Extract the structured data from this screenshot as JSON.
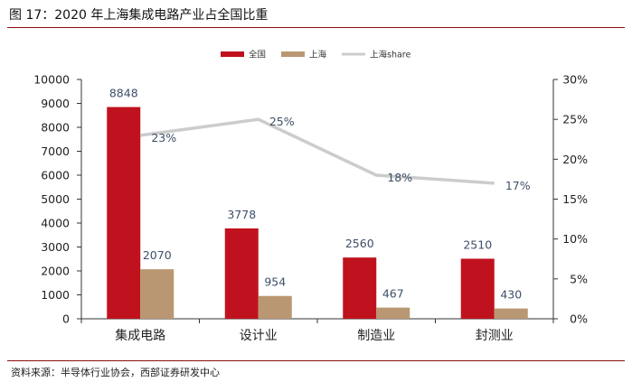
{
  "header": {
    "title": "图 17：2020 年上海集成电路产业占全国比重"
  },
  "footer": {
    "source": "资料来源：半导体行业协会，西部证券研发中心"
  },
  "colors": {
    "national": "#c0121e",
    "shanghai": "#b99772",
    "share": "#cccccc",
    "label": "#3d4f68",
    "rule": "#8b0e10"
  },
  "chart_data": {
    "type": "bar",
    "categories": [
      "集成电路",
      "设计业",
      "制造业",
      "封测业"
    ],
    "series": [
      {
        "name": "全国",
        "type": "bar",
        "axis": "left",
        "values": [
          8848,
          3778,
          2560,
          2510
        ],
        "labels": [
          "8848",
          "3778",
          "2560",
          "2510"
        ]
      },
      {
        "name": "上海",
        "type": "bar",
        "axis": "left",
        "values": [
          2070,
          954,
          467,
          430
        ],
        "labels": [
          "2070",
          "954",
          "467",
          "430"
        ]
      },
      {
        "name": "上海share",
        "type": "line",
        "axis": "right",
        "values": [
          23,
          25,
          18,
          17
        ],
        "labels": [
          "23%",
          "25%",
          "18%",
          "17%"
        ]
      }
    ],
    "y_left": {
      "min": 0,
      "max": 10000,
      "ticks": [
        "0",
        "1000",
        "2000",
        "3000",
        "4000",
        "5000",
        "6000",
        "7000",
        "8000",
        "9000",
        "10000"
      ]
    },
    "y_right": {
      "min": 0,
      "max": 30,
      "ticks": [
        "0%",
        "5%",
        "10%",
        "15%",
        "20%",
        "25%",
        "30%"
      ]
    },
    "legend": {
      "position": "top-center",
      "items": [
        "全国",
        "上海",
        "上海share"
      ]
    },
    "grid": false
  }
}
